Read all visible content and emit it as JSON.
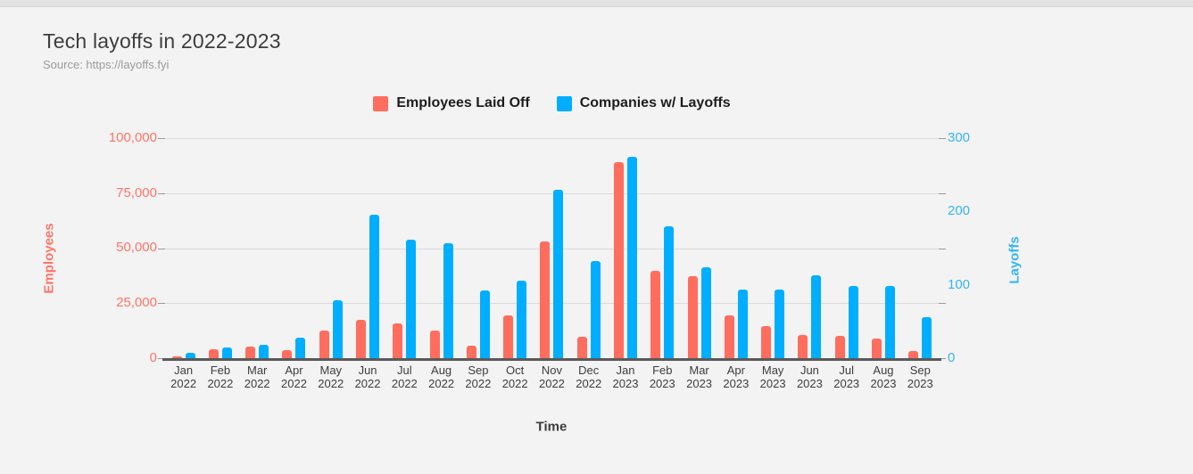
{
  "chart_data": {
    "type": "bar",
    "title": "Tech layoffs in 2022-2023",
    "subtitle": "Source: https://layoffs.fyi",
    "xlabel": "Time",
    "legend_position": "top",
    "grid": true,
    "categories": [
      "Jan 2022",
      "Feb 2022",
      "Mar 2022",
      "Apr 2022",
      "May 2022",
      "Jun 2022",
      "Jul 2022",
      "Aug 2022",
      "Sep 2022",
      "Oct 2022",
      "Nov 2022",
      "Dec 2022",
      "Jan 2023",
      "Feb 2023",
      "Mar 2023",
      "Apr 2023",
      "May 2023",
      "Jun 2023",
      "Jul 2023",
      "Aug 2023",
      "Sep 2023"
    ],
    "series": [
      {
        "name": "Employees Laid Off",
        "axis": "left",
        "color": "#FF6D5E",
        "values": [
          1000,
          4200,
          5300,
          3700,
          12700,
          17600,
          15800,
          12400,
          5500,
          19600,
          53100,
          9800,
          89200,
          39700,
          37100,
          19600,
          14500,
          10400,
          10200,
          9100,
          3300
        ]
      },
      {
        "name": "Companies w/ Layoffs",
        "axis": "right",
        "color": "#00AEFF",
        "values": [
          7,
          14,
          18,
          28,
          79,
          195,
          161,
          157,
          92,
          106,
          229,
          132,
          274,
          180,
          124,
          94,
          94,
          113,
          98,
          98,
          56
        ]
      }
    ],
    "y_left": {
      "label": "Employees",
      "min": 0,
      "max": 100000,
      "ticks": [
        "100,000",
        "75,000",
        "50,000",
        "25,000",
        "0"
      ],
      "color": "#FF7568"
    },
    "y_right": {
      "label": "Layoffs",
      "min": 0,
      "max": 300,
      "ticks": [
        "300",
        "200",
        "100",
        "0"
      ],
      "color": "#35B5F3"
    }
  }
}
